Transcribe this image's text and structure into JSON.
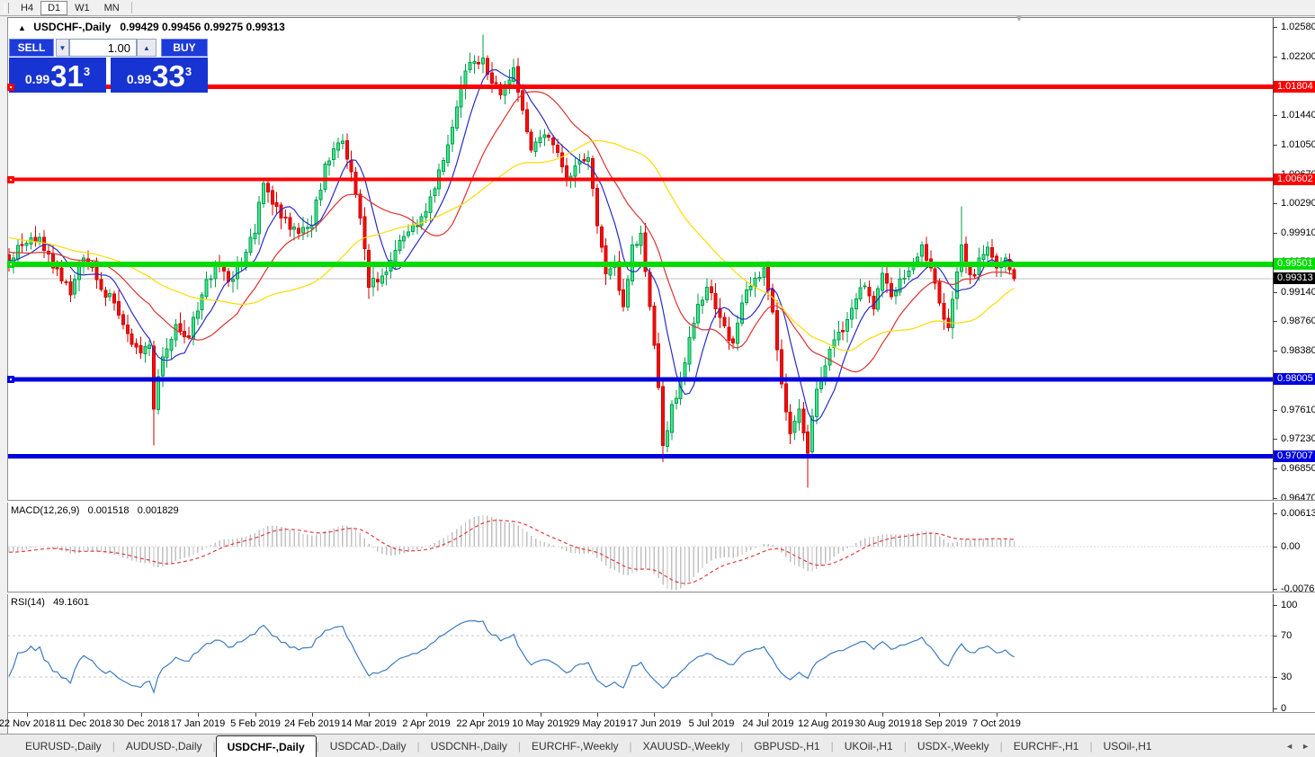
{
  "toolbar": {
    "timeframes": [
      {
        "label": "H4",
        "active": false
      },
      {
        "label": "D1",
        "active": true
      },
      {
        "label": "W1",
        "active": false
      },
      {
        "label": "MN",
        "active": false
      }
    ]
  },
  "window": {
    "title_arrow": "▲",
    "symbol": "USDCHF-,Daily",
    "ohlc_text": "0.99429 0.99456 0.99275 0.99313",
    "autoscroll_marker": "▼"
  },
  "trade_panel": {
    "sell_label": "SELL",
    "buy_label": "BUY",
    "volume": "1.00",
    "spinner_down": "▼",
    "spinner_up": "▲",
    "sell_price": {
      "big": "0.99",
      "main": "31",
      "sup": "3"
    },
    "buy_price": {
      "big": "0.99",
      "main": "33",
      "sup": "3"
    }
  },
  "price_axis": {
    "ticks": [
      "1.02580",
      "1.02200",
      "1.01820",
      "1.01440",
      "1.01050",
      "1.00670",
      "1.00290",
      "0.99910",
      "0.99530",
      "0.99140",
      "0.98760",
      "0.98380",
      "0.98000",
      "0.97610",
      "0.97230",
      "0.96850",
      "0.96470"
    ]
  },
  "macd_panel": {
    "label": "MACD(12,26,9)",
    "value_main": "0.001518",
    "value_signal": "0.001829",
    "axis_ticks": [
      "0.00613",
      "0.00",
      "-0.00761"
    ]
  },
  "rsi_panel": {
    "label": "RSI(14)",
    "value": "49.1601",
    "axis_ticks": [
      "100",
      "70",
      "30",
      "0"
    ]
  },
  "date_axis": {
    "labels": [
      "22 Nov 2018",
      "11 Dec 2018",
      "30 Dec 2018",
      "17 Jan 2019",
      "5 Feb 2019",
      "24 Feb 2019",
      "14 Mar 2019",
      "2 Apr 2019",
      "22 Apr 2019",
      "10 May 2019",
      "29 May 2019",
      "17 Jun 2019",
      "5 Jul 2019",
      "24 Jul 2019",
      "12 Aug 2019",
      "30 Aug 2019",
      "18 Sep 2019",
      "7 Oct 2019"
    ]
  },
  "tabs": {
    "scroll_left": "◄",
    "scroll_right": "►",
    "items": [
      {
        "label": "EURUSD-,Daily",
        "active": false
      },
      {
        "label": "AUDUSD-,Daily",
        "active": false
      },
      {
        "label": "USDCHF-,Daily",
        "active": true
      },
      {
        "label": "USDCAD-,Daily",
        "active": false
      },
      {
        "label": "USDCNH-,Daily",
        "active": false
      },
      {
        "label": "EURCHF-,Weekly",
        "active": false
      },
      {
        "label": "XAUUSD-,Weekly",
        "active": false
      },
      {
        "label": "GBPUSD-,H1",
        "active": false
      },
      {
        "label": "UKOil-,H1",
        "active": false
      },
      {
        "label": "USDX-,Weekly",
        "active": false
      },
      {
        "label": "EURCHF-,H1",
        "active": false
      },
      {
        "label": "USOil-,H1",
        "active": false
      }
    ]
  },
  "chart_data": {
    "type": "candlestick",
    "symbol": "USDCHF",
    "period": "Daily",
    "visible_price_range": [
      0.9647,
      1.0258
    ],
    "candle_count": 230,
    "last_bar": {
      "open": 0.99429,
      "high": 0.99456,
      "low": 0.99275,
      "close": 0.99313
    },
    "warmup": {
      "count": 50,
      "start_price": 1.003
    },
    "close_anchors": [
      [
        0,
        0.995
      ],
      [
        3,
        0.9975
      ],
      [
        7,
        0.9985
      ],
      [
        10,
        0.9945
      ],
      [
        14,
        0.991
      ],
      [
        17,
        0.9958
      ],
      [
        20,
        0.993
      ],
      [
        24,
        0.99
      ],
      [
        27,
        0.986
      ],
      [
        30,
        0.9835
      ],
      [
        32,
        0.9845
      ],
      [
        33,
        0.9762
      ],
      [
        35,
        0.983
      ],
      [
        38,
        0.9872
      ],
      [
        41,
        0.9855
      ],
      [
        44,
        0.991
      ],
      [
        47,
        0.9948
      ],
      [
        50,
        0.9928
      ],
      [
        53,
        0.9952
      ],
      [
        56,
        0.999
      ],
      [
        58,
        1.0055
      ],
      [
        60,
        1.0028
      ],
      [
        63,
        1.001
      ],
      [
        66,
        0.999
      ],
      [
        69,
        1.0
      ],
      [
        72,
        1.008
      ],
      [
        74,
        1.01
      ],
      [
        76,
        1.011
      ],
      [
        78,
        1.007
      ],
      [
        80,
        1.001
      ],
      [
        82,
        0.992
      ],
      [
        85,
        0.9935
      ],
      [
        88,
        0.9968
      ],
      [
        91,
        0.9992
      ],
      [
        94,
        1.0012
      ],
      [
        97,
        1.0048
      ],
      [
        100,
        1.0105
      ],
      [
        103,
        1.018
      ],
      [
        105,
        1.0212
      ],
      [
        108,
        1.0218
      ],
      [
        110,
        1.0185
      ],
      [
        112,
        1.017
      ],
      [
        115,
        1.0205
      ],
      [
        117,
        1.015
      ],
      [
        119,
        1.0098
      ],
      [
        122,
        1.0118
      ],
      [
        125,
        1.0095
      ],
      [
        127,
        1.006
      ],
      [
        129,
        1.0078
      ],
      [
        132,
        1.0088
      ],
      [
        134,
        1.0
      ],
      [
        136,
        0.9938
      ],
      [
        138,
        0.9952
      ],
      [
        140,
        0.9895
      ],
      [
        142,
        0.9975
      ],
      [
        144,
        0.999
      ],
      [
        146,
        0.9895
      ],
      [
        148,
        0.979
      ],
      [
        149,
        0.9715
      ],
      [
        151,
        0.9768
      ],
      [
        153,
        0.98
      ],
      [
        155,
        0.9855
      ],
      [
        157,
        0.9898
      ],
      [
        159,
        0.992
      ],
      [
        161,
        0.9892
      ],
      [
        163,
        0.987
      ],
      [
        165,
        0.9848
      ],
      [
        167,
        0.99
      ],
      [
        170,
        0.9932
      ],
      [
        172,
        0.9945
      ],
      [
        174,
        0.9888
      ],
      [
        176,
        0.9795
      ],
      [
        178,
        0.973
      ],
      [
        180,
        0.9762
      ],
      [
        182,
        0.9705
      ],
      [
        184,
        0.9788
      ],
      [
        186,
        0.9818
      ],
      [
        189,
        0.9862
      ],
      [
        191,
        0.9878
      ],
      [
        193,
        0.9905
      ],
      [
        195,
        0.9922
      ],
      [
        197,
        0.9892
      ],
      [
        199,
        0.9938
      ],
      [
        201,
        0.9908
      ],
      [
        204,
        0.9932
      ],
      [
        206,
        0.9952
      ],
      [
        208,
        0.9975
      ],
      [
        210,
        0.9945
      ],
      [
        212,
        0.99
      ],
      [
        214,
        0.9868
      ],
      [
        216,
        0.994
      ],
      [
        217,
        0.9975
      ],
      [
        218,
        0.995
      ],
      [
        220,
        0.9935
      ],
      [
        221,
        0.9958
      ],
      [
        223,
        0.9972
      ],
      [
        225,
        0.9945
      ],
      [
        227,
        0.9958
      ],
      [
        228,
        0.99429
      ],
      [
        229,
        0.99313
      ]
    ],
    "wick_overrides": {
      "33": {
        "low": 0.9715
      },
      "108": {
        "high": 1.0248
      },
      "149": {
        "low": 0.9693
      },
      "182": {
        "low": 0.966
      },
      "217": {
        "high": 1.0025
      },
      "229": {
        "open": 0.99429,
        "high": 0.99456,
        "low": 0.99275,
        "close": 0.99313
      }
    },
    "levels": [
      {
        "price": 1.01804,
        "label": "1.01804",
        "color": "#FF0000",
        "thickness": 5,
        "handle": true
      },
      {
        "price": 1.00602,
        "label": "1.00602",
        "color": "#FF0000",
        "thickness": 4,
        "handle": true
      },
      {
        "price": 0.99501,
        "label": "0.99501",
        "color": "#00DC00",
        "thickness": 6,
        "handle": true
      },
      {
        "price": 0.98005,
        "label": "0.98005",
        "color": "#0000DC",
        "thickness": 5,
        "handle": true
      },
      {
        "price": 0.97007,
        "label": "0.97007",
        "color": "#0000DC",
        "thickness": 5,
        "handle": false
      }
    ],
    "current_price": {
      "price": 0.99313,
      "label": "0.99313",
      "badge_color": "#000000",
      "line_color": "#C0C0C0"
    },
    "moving_averages": [
      {
        "name": "ma-fast",
        "period": 8,
        "color": "#2B2BC8"
      },
      {
        "name": "ma-mid",
        "period": 20,
        "color": "#DC3232"
      },
      {
        "name": "ma-slow",
        "period": 45,
        "color": "#FFDB00"
      }
    ],
    "indicators": {
      "macd": {
        "fast": 12,
        "slow": 26,
        "signal": 9,
        "current": 0.001518,
        "current_signal": 0.001829,
        "axis_max": 0.00613,
        "axis_min": -0.00761,
        "hist_color": "#C0C0C0",
        "signal_color": "#E03C3C"
      },
      "rsi": {
        "period": 14,
        "current": 49.1601,
        "levels": [
          70,
          30
        ],
        "color": "#3E7BBF",
        "level_color": "#C8C8C8"
      }
    },
    "colors": {
      "bull_fill": "#45E68C",
      "bull_stroke": "#00A04E",
      "bear_fill": "#F01111",
      "bear_stroke": "#D40000"
    }
  }
}
